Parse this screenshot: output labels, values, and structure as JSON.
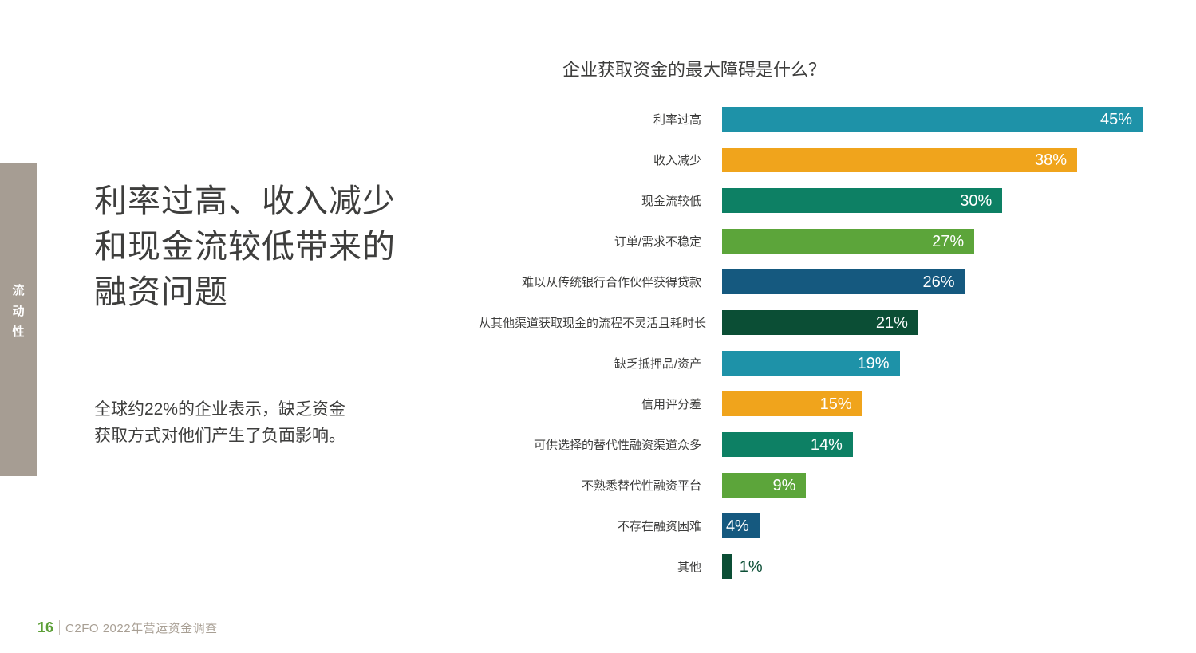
{
  "page": {
    "sidebar_tab": {
      "label": "流动性",
      "chars": [
        "流",
        "动",
        "性"
      ],
      "bg_color": "#a69d93"
    },
    "headline": "利率过高、收入减少\n和现金流较低带来的\n融资问题",
    "body_text": "全球约22%的企业表示，缺乏资金\n获取方式对他们产生了负面影响。",
    "footer": {
      "page_number": "16",
      "source": "C2FO 2022年营运资金调查"
    }
  },
  "chart_data": {
    "type": "bar",
    "orientation": "horizontal",
    "title": "企业获取资金的最大障碍是什么？",
    "categories": [
      "利率过高",
      "收入减少",
      "现金流较低",
      "订单/需求不稳定",
      "难以从传统银行合作伙伴获得贷款",
      "从其他渠道获取现金的流程不灵活且耗时长",
      "缺乏抵押品/资产",
      "信用评分差",
      "可供选择的替代性融资渠道众多",
      "不熟悉替代性融资平台",
      "不存在融资困难",
      "其他"
    ],
    "values": [
      45,
      38,
      30,
      27,
      26,
      21,
      19,
      15,
      14,
      9,
      4,
      1
    ],
    "value_labels": [
      "45%",
      "38%",
      "30%",
      "27%",
      "26%",
      "21%",
      "19%",
      "15%",
      "14%",
      "9%",
      "4%",
      "1%"
    ],
    "bar_colors": [
      "#1e92a8",
      "#f0a41c",
      "#0d8064",
      "#5ca53a",
      "#15597f",
      "#0b4e35",
      "#1e92a8",
      "#f0a41c",
      "#0d8064",
      "#5ca53a",
      "#15597f",
      "#0b4e35"
    ],
    "xlim": [
      0,
      45
    ],
    "grid": false,
    "legend": false,
    "value_label_position": "inside-end (outside-end when bar too short)"
  }
}
